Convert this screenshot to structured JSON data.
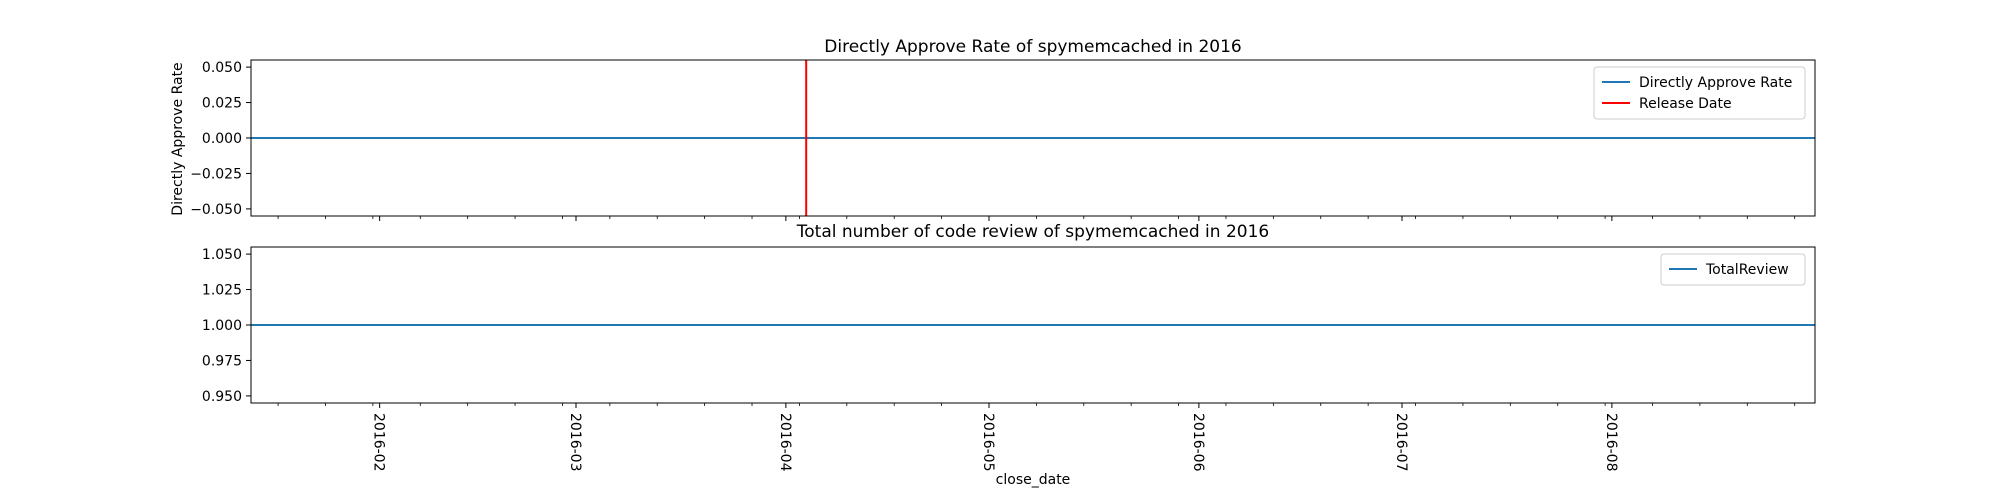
{
  "chart_data": [
    {
      "type": "line",
      "title": "Directly Approve Rate of spymemcached in 2016",
      "ylabel": "Directly Approve Rate",
      "xlabel": "",
      "ylim": [
        -0.055,
        0.055
      ],
      "yticks": [
        "0.050",
        "0.025",
        "0.000",
        "−0.025",
        "−0.050"
      ],
      "ytick_values": [
        0.05,
        0.025,
        0.0,
        -0.025,
        -0.05
      ],
      "series": [
        {
          "name": "Directly Approve Rate",
          "color": "#1f77b4",
          "x": [
            "2016-01-13",
            "2016-08-31"
          ],
          "y": [
            0.0,
            0.0
          ]
        }
      ],
      "vlines": [
        {
          "name": "Release Date",
          "color": "#ff0000",
          "x": "2016-04-04"
        }
      ],
      "legend": "top-right"
    },
    {
      "type": "line",
      "title": "Total number of code review of spymemcached in 2016",
      "ylabel": "",
      "xlabel": "close_date",
      "ylim": [
        0.945,
        1.055
      ],
      "yticks": [
        "1.050",
        "1.025",
        "1.000",
        "0.975",
        "0.950"
      ],
      "ytick_values": [
        1.05,
        1.025,
        1.0,
        0.975,
        0.95
      ],
      "series": [
        {
          "name": "TotalReview",
          "color": "#1f77b4",
          "x": [
            "2016-01-13",
            "2016-08-31"
          ],
          "y": [
            1.0,
            1.0
          ]
        }
      ],
      "legend": "top-right"
    }
  ],
  "x_axis": {
    "xlim": [
      "2016-01-13",
      "2016-08-31"
    ],
    "tick_labels": [
      "2016-02",
      "2016-03",
      "2016-04",
      "2016-05",
      "2016-06",
      "2016-07",
      "2016-08"
    ],
    "tick_dates": [
      "2016-02-01",
      "2016-03-01",
      "2016-04-01",
      "2016-05-01",
      "2016-06-01",
      "2016-07-01",
      "2016-08-01"
    ]
  }
}
